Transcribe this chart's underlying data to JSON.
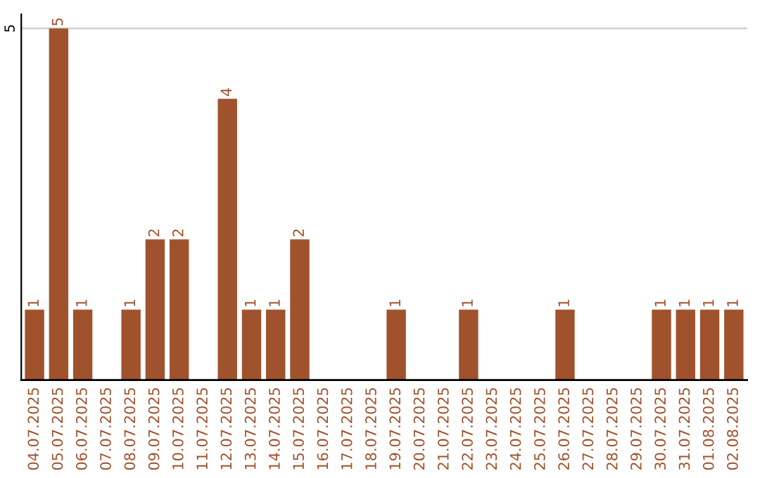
{
  "chart_data": {
    "type": "bar",
    "categories": [
      "04.07.2025",
      "05.07.2025",
      "06.07.2025",
      "07.07.2025",
      "08.07.2025",
      "09.07.2025",
      "10.07.2025",
      "11.07.2025",
      "12.07.2025",
      "13.07.2025",
      "14.07.2025",
      "15.07.2025",
      "16.07.2025",
      "17.07.2025",
      "18.07.2025",
      "19.07.2025",
      "20.07.2025",
      "21.07.2025",
      "22.07.2025",
      "23.07.2025",
      "24.07.2025",
      "25.07.2025",
      "26.07.2025",
      "27.07.2025",
      "28.07.2025",
      "29.07.2025",
      "30.07.2025",
      "31.07.2025",
      "01.08.2025",
      "02.08.2025"
    ],
    "values": [
      1,
      5,
      1,
      0,
      1,
      2,
      2,
      0,
      4,
      1,
      1,
      2,
      0,
      0,
      0,
      1,
      0,
      0,
      1,
      0,
      0,
      0,
      1,
      0,
      0,
      0,
      1,
      1,
      1,
      1
    ],
    "value_labels": [
      "1",
      "5",
      "1",
      null,
      "1",
      "2",
      "2",
      null,
      "4",
      "1",
      "1",
      "2",
      null,
      null,
      null,
      "1",
      null,
      null,
      "1",
      null,
      null,
      null,
      "1",
      null,
      null,
      null,
      "1",
      "1",
      "1",
      "1"
    ],
    "color": "#a0522d",
    "ylim": [
      0,
      5.2
    ],
    "yticks": [
      5
    ],
    "grid": "y"
  }
}
